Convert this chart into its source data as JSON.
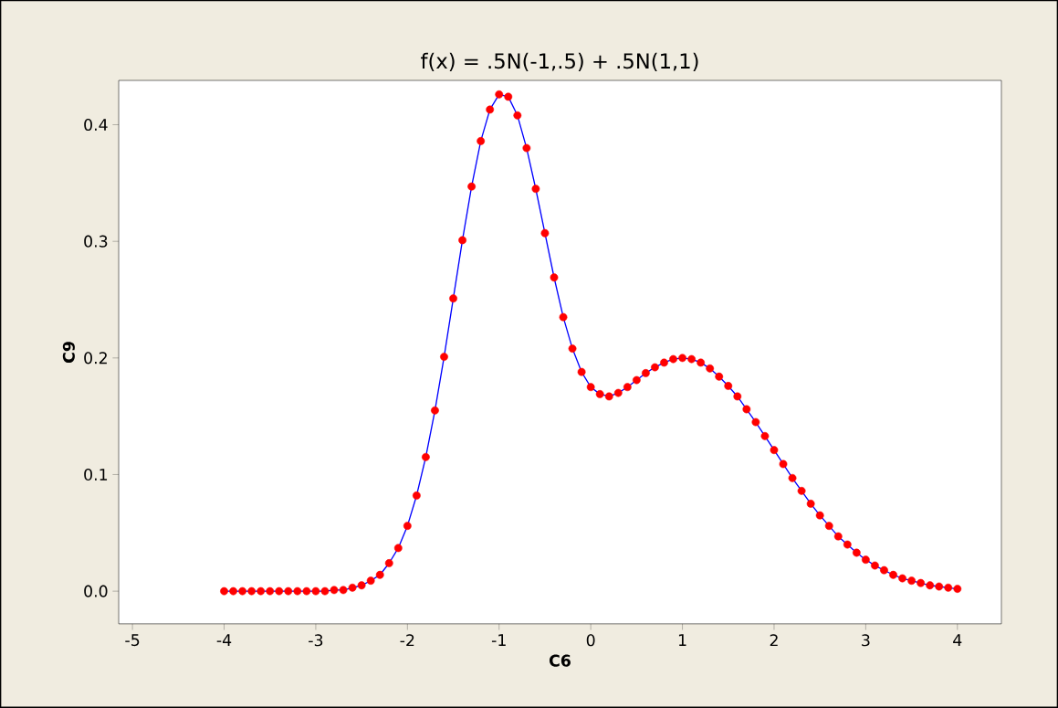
{
  "chart_data": {
    "type": "line",
    "title": "f(x) = .5N(-1,.5) + .5N(1,1)",
    "xlabel": "C6",
    "ylabel": "C9",
    "x": [
      -4.0,
      -3.9,
      -3.8,
      -3.7,
      -3.6,
      -3.5,
      -3.4,
      -3.3,
      -3.2,
      -3.1,
      -3.0,
      -2.9,
      -2.8,
      -2.7,
      -2.6,
      -2.5,
      -2.4,
      -2.3,
      -2.2,
      -2.1,
      -2.0,
      -1.9,
      -1.8,
      -1.7,
      -1.6,
      -1.5,
      -1.4,
      -1.3,
      -1.2,
      -1.1,
      -1.0,
      -0.9,
      -0.8,
      -0.7,
      -0.6,
      -0.5,
      -0.4,
      -0.3,
      -0.2,
      -0.1,
      0.0,
      0.1,
      0.2,
      0.3,
      0.4,
      0.5,
      0.6,
      0.7,
      0.8,
      0.9,
      1.0,
      1.1,
      1.2,
      1.3,
      1.4,
      1.5,
      1.6,
      1.7,
      1.8,
      1.9,
      2.0,
      2.1,
      2.2,
      2.3,
      2.4,
      2.5,
      2.6,
      2.7,
      2.8,
      2.9,
      3.0,
      3.1,
      3.2,
      3.3,
      3.4,
      3.5,
      3.6,
      3.7,
      3.8,
      3.9,
      4.0
    ],
    "series": [
      {
        "color": "#0000ff",
        "colors": [
          "#ff0000",
          "#ff0000",
          "#ff0000",
          "#ff0000",
          "#ff0000",
          "#ff0000",
          "#ff0000",
          "#ff0000",
          "#ff0000",
          "#ff0000",
          "#ff0000",
          "#ff0000",
          "#ff0000",
          "#ff0000",
          "#ff0000",
          "#ff0000",
          "#ff0000",
          "#ff0000",
          "#ff0000",
          "#ff0000",
          "#ff0000",
          "#ff0000",
          "#ff0000",
          "#ff0000",
          "#ff0000",
          "#ff0000",
          "#ff0000",
          "#ff0000",
          "#ff0000",
          "#ff0000",
          "#ff0000",
          "#ff0000",
          "#ff0000",
          "#ff0000",
          "#ff0000",
          "#ff0000",
          "#ff0000",
          "#ff0000",
          "#ff0000",
          "#ff0000",
          "#ff0000",
          "#ff0000",
          "#ff0000",
          "#ff0000",
          "#ff0000",
          "#ff0000",
          "#ff0000",
          "#ff0000",
          "#ff0000",
          "#ff0000",
          "#ff0000",
          "#ff0000",
          "#ff0000",
          "#ff0000",
          "#ff0000",
          "#ff0000",
          "#ff0000",
          "#ff0000",
          "#ff0000",
          "#ff0000",
          "#ff0000",
          "#ff0000",
          "#ff0000",
          "#ff0000",
          "#ff0000",
          "#ff0000",
          "#ff0000",
          "#ff0000",
          "#ff0000",
          "#ff0000",
          "#ff0000",
          "#ff0000",
          "#ff0000",
          "#ff0000",
          "#ff0000",
          "#ff0000",
          "#ff0000",
          "#ff0000",
          "#ff0000",
          "#ff0000",
          "#ff0000"
        ],
        "values": [
          0.0,
          0.0,
          0.0,
          0.0,
          0.0,
          0.0,
          0.0,
          0.0,
          0.0,
          0.0,
          0.0,
          0.0,
          0.001,
          0.001,
          0.003,
          0.005,
          0.009,
          0.014,
          0.024,
          0.037,
          0.056,
          0.082,
          0.115,
          0.155,
          0.201,
          0.251,
          0.301,
          0.347,
          0.386,
          0.413,
          0.426,
          0.424,
          0.408,
          0.38,
          0.345,
          0.307,
          0.269,
          0.235,
          0.208,
          0.188,
          0.175,
          0.169,
          0.167,
          0.17,
          0.175,
          0.181,
          0.187,
          0.192,
          0.196,
          0.199,
          0.2,
          0.199,
          0.196,
          0.191,
          0.184,
          0.176,
          0.167,
          0.156,
          0.145,
          0.133,
          0.121,
          0.109,
          0.097,
          0.086,
          0.075,
          0.065,
          0.056,
          0.047,
          0.04,
          0.033,
          0.027,
          0.022,
          0.018,
          0.014,
          0.011,
          0.009,
          0.007,
          0.005,
          0.004,
          0.003,
          0.002
        ]
      }
    ],
    "marker": "circle",
    "xlim": [
      -5.15,
      4.48
    ],
    "ylim": [
      -0.028,
      0.438
    ],
    "xticks": [
      -5,
      -4,
      -3,
      -2,
      -1,
      0,
      1,
      2,
      3,
      4
    ],
    "yticks": [
      {
        "value": 0,
        "label": "0.0"
      },
      {
        "value": 0.1,
        "label": "0.1"
      },
      {
        "value": 0.2,
        "label": "0.2"
      },
      {
        "value": 0.3,
        "label": "0.3"
      },
      {
        "value": 0.4,
        "label": "0.4"
      }
    ]
  }
}
